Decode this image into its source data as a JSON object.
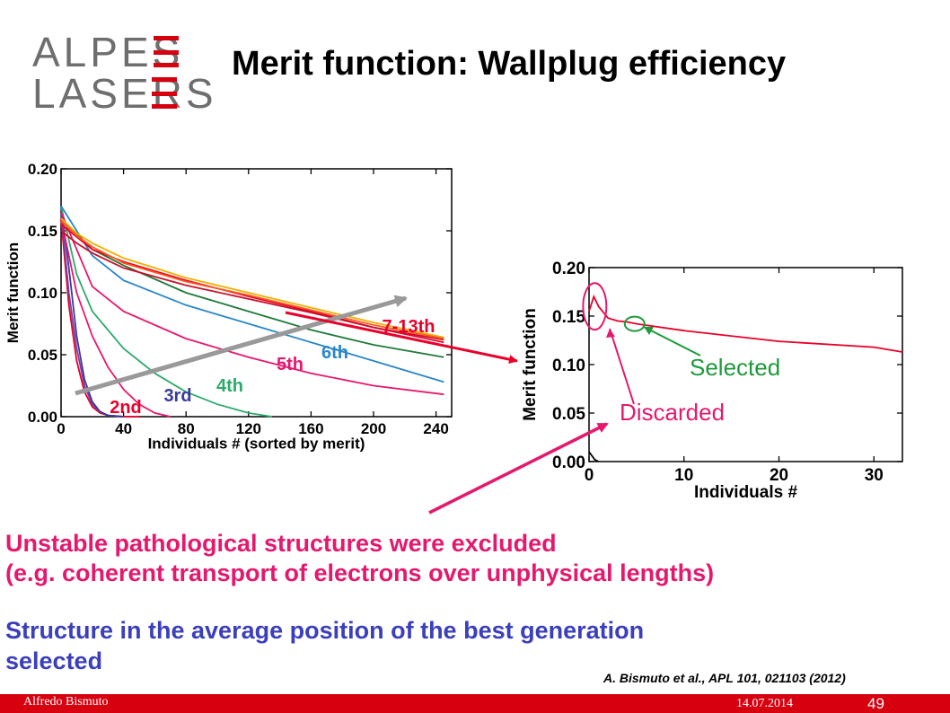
{
  "slide": {
    "logo_line1": "ALPES",
    "logo_line2": "LASERS",
    "title": "Merit function: Wallplug efficiency",
    "statement_pink_line1": "Unstable pathological structures were excluded",
    "statement_pink_line2": "(e.g. coherent transport of electrons over unphysical lengths)",
    "statement_blue_line1": "Structure in the average position of the best generation",
    "statement_blue_line2": "selected",
    "citation": "A. Bismuto et al., APL 101, 021103 (2012)",
    "footer_author": "Alfredo Bismuto",
    "footer_date": "14.07.2014",
    "page_number": "49"
  },
  "colors": {
    "brand_red": "#d6000f",
    "pink": "#e4196e",
    "blue": "#3b3fbc",
    "grey_arrow": "#999999",
    "green_annotation": "#1e9a3c"
  },
  "chart_data": [
    {
      "type": "line",
      "xlabel": "Individuals # (sorted by merit)",
      "ylabel": "Merit function",
      "xlim": [
        0,
        250
      ],
      "ylim": [
        0,
        0.2
      ],
      "xticks": [
        "0",
        "40",
        "80",
        "120",
        "160",
        "200",
        "240"
      ],
      "yticks": [
        "0.00",
        "0.05",
        "0.10",
        "0.15",
        "0.20"
      ],
      "grid": false,
      "series": [
        {
          "name": "2nd",
          "color": "#e8002a",
          "x": [
            0,
            5,
            10,
            15,
            20,
            25,
            30,
            40,
            50
          ],
          "y": [
            0.16,
            0.09,
            0.045,
            0.02,
            0.008,
            0.003,
            0.001,
            0.0,
            0.0
          ]
        },
        {
          "name": "",
          "color": "#7b3fa5",
          "x": [
            0,
            5,
            10,
            15,
            20,
            25,
            30,
            40
          ],
          "y": [
            0.165,
            0.1,
            0.055,
            0.025,
            0.01,
            0.004,
            0.001,
            0.0
          ]
        },
        {
          "name": "3rd",
          "color": "#3a3a9a",
          "x": [
            0,
            5,
            10,
            15,
            20,
            25,
            30,
            40
          ],
          "y": [
            0.17,
            0.12,
            0.065,
            0.03,
            0.012,
            0.004,
            0.001,
            0.0
          ]
        },
        {
          "name": "",
          "color": "#e8176e",
          "x": [
            0,
            10,
            20,
            30,
            40,
            50,
            60,
            70
          ],
          "y": [
            0.16,
            0.1,
            0.065,
            0.04,
            0.022,
            0.01,
            0.003,
            0.0
          ]
        },
        {
          "name": "4th",
          "color": "#2eaa6e",
          "x": [
            0,
            10,
            20,
            40,
            60,
            80,
            100,
            120,
            135
          ],
          "y": [
            0.17,
            0.115,
            0.085,
            0.055,
            0.035,
            0.02,
            0.01,
            0.003,
            0.0
          ]
        },
        {
          "name": "5th",
          "color": "#e8176e",
          "x": [
            0,
            20,
            40,
            80,
            120,
            160,
            200,
            245
          ],
          "y": [
            0.165,
            0.105,
            0.085,
            0.063,
            0.048,
            0.035,
            0.025,
            0.018
          ]
        },
        {
          "name": "6th",
          "color": "#2a86c8",
          "x": [
            0,
            20,
            40,
            80,
            120,
            160,
            200,
            245
          ],
          "y": [
            0.17,
            0.13,
            0.11,
            0.09,
            0.075,
            0.06,
            0.045,
            0.028
          ]
        },
        {
          "name": "",
          "color": "#1e7a3a",
          "x": [
            0,
            20,
            40,
            80,
            120,
            160,
            200,
            245
          ],
          "y": [
            0.16,
            0.135,
            0.122,
            0.1,
            0.085,
            0.07,
            0.058,
            0.048
          ]
        },
        {
          "name": "7-13th",
          "color": "#e8002a",
          "x": [
            0,
            10,
            20,
            40,
            80,
            120,
            160,
            200,
            245
          ],
          "y": [
            0.155,
            0.145,
            0.135,
            0.125,
            0.11,
            0.097,
            0.085,
            0.072,
            0.06
          ]
        },
        {
          "name": "",
          "color": "#f0b000",
          "x": [
            0,
            10,
            20,
            40,
            80,
            120,
            160,
            200,
            245
          ],
          "y": [
            0.16,
            0.148,
            0.14,
            0.128,
            0.112,
            0.1,
            0.088,
            0.076,
            0.064
          ]
        },
        {
          "name": "",
          "color": "#c8102e",
          "x": [
            0,
            10,
            20,
            40,
            80,
            120,
            160,
            200,
            245
          ],
          "y": [
            0.15,
            0.14,
            0.132,
            0.12,
            0.106,
            0.095,
            0.084,
            0.072,
            0.062
          ]
        },
        {
          "name": "",
          "color": "#ff5a1f",
          "x": [
            0,
            10,
            20,
            40,
            80,
            120,
            160,
            200,
            245
          ],
          "y": [
            0.158,
            0.146,
            0.137,
            0.124,
            0.109,
            0.098,
            0.086,
            0.074,
            0.063
          ]
        }
      ],
      "annotations": [
        "2nd",
        "3rd",
        "4th",
        "5th",
        "6th",
        "7-13th"
      ]
    },
    {
      "type": "line",
      "xlabel": "Individuals #",
      "ylabel": "Merit function",
      "xlim": [
        0,
        33
      ],
      "ylim": [
        0,
        0.2
      ],
      "xticks": [
        "0",
        "10",
        "20",
        "30"
      ],
      "yticks": [
        "0.00",
        "0.05",
        "0.10",
        "0.15",
        "0.20"
      ],
      "grid": false,
      "series": [
        {
          "name": "",
          "color": "#e8002a",
          "x": [
            0,
            0.5,
            1,
            2,
            3,
            4,
            5,
            10,
            20,
            30,
            33
          ],
          "y": [
            0.155,
            0.17,
            0.16,
            0.148,
            0.145,
            0.144,
            0.142,
            0.135,
            0.124,
            0.118,
            0.113
          ]
        },
        {
          "name": "",
          "color": "#000000",
          "x": [
            0,
            0.3,
            0.6,
            1.0
          ],
          "y": [
            0.01,
            0.006,
            0.002,
            0.0
          ]
        }
      ],
      "annotations": [
        "Selected",
        "Discarded"
      ]
    }
  ]
}
